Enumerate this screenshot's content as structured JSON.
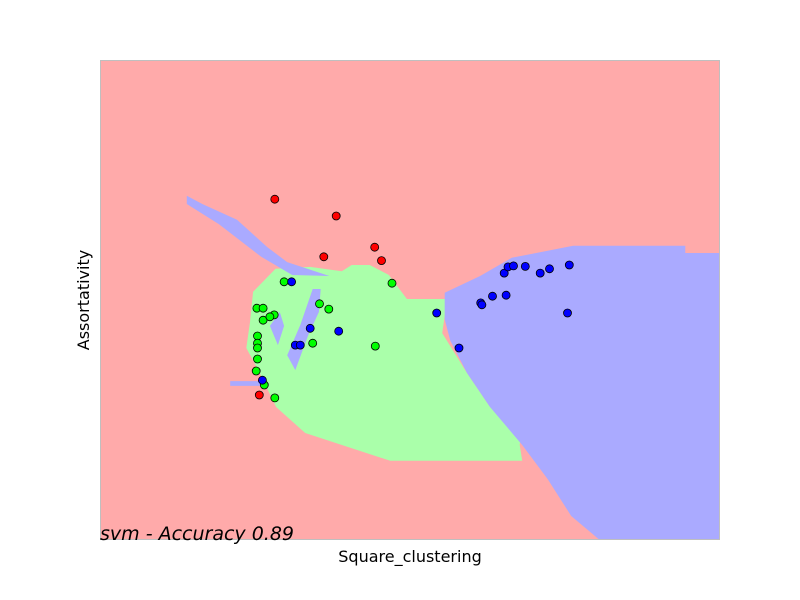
{
  "chart_data": {
    "type": "scatter",
    "title": "",
    "xlabel": "Square_clustering",
    "ylabel": "Assortativity",
    "annotation": "svm - Accuracy 0.89",
    "xlim": [
      0,
      1
    ],
    "ylim": [
      0,
      1
    ],
    "grid": false,
    "ticks": "hidden",
    "colors": {
      "background_region": "#ffaaaa",
      "blue_region": "#aaaaff",
      "green_region": "#aaffaa",
      "red_points": "#ff0000",
      "green_points": "#00ff00",
      "blue_points": "#0000ff",
      "point_edge": "#000000",
      "frame": "#bfbfbf"
    },
    "series": [
      {
        "class": "red",
        "x": [
          0.282,
          0.381,
          0.361,
          0.443,
          0.454,
          0.257
        ],
        "y": [
          0.71,
          0.675,
          0.59,
          0.61,
          0.582,
          0.302
        ]
      },
      {
        "class": "green",
        "x": [
          0.297,
          0.253,
          0.263,
          0.281,
          0.263,
          0.274,
          0.354,
          0.369,
          0.471,
          0.343,
          0.254,
          0.254,
          0.254,
          0.254,
          0.252,
          0.265,
          0.282,
          0.444
        ],
        "y": [
          0.538,
          0.483,
          0.483,
          0.469,
          0.458,
          0.465,
          0.492,
          0.481,
          0.535,
          0.41,
          0.425,
          0.41,
          0.4,
          0.377,
          0.352,
          0.323,
          0.296,
          0.404
        ]
      },
      {
        "class": "blue",
        "x": [
          0.309,
          0.339,
          0.385,
          0.315,
          0.323,
          0.262,
          0.543,
          0.579,
          0.614,
          0.616,
          0.633,
          0.655,
          0.652,
          0.658,
          0.667,
          0.686,
          0.71,
          0.725,
          0.757,
          0.754
        ],
        "y": [
          0.538,
          0.441,
          0.435,
          0.406,
          0.406,
          0.333,
          0.473,
          0.4,
          0.494,
          0.49,
          0.508,
          0.51,
          0.556,
          0.569,
          0.571,
          0.57,
          0.556,
          0.565,
          0.573,
          0.473
        ]
      }
    ],
    "decision_regions": {
      "background_class": "red",
      "green": [
        [
          0.242,
          0.454
        ],
        [
          0.236,
          0.4
        ],
        [
          0.256,
          0.352
        ],
        [
          0.284,
          0.277
        ],
        [
          0.331,
          0.223
        ],
        [
          0.468,
          0.165
        ],
        [
          0.681,
          0.165
        ],
        [
          0.677,
          0.198
        ],
        [
          0.681,
          0.244
        ],
        [
          0.629,
          0.277
        ],
        [
          0.592,
          0.348
        ],
        [
          0.552,
          0.431
        ],
        [
          0.56,
          0.502
        ],
        [
          0.495,
          0.502
        ],
        [
          0.466,
          0.552
        ],
        [
          0.435,
          0.573
        ],
        [
          0.406,
          0.573
        ],
        [
          0.39,
          0.56
        ],
        [
          0.339,
          0.569
        ],
        [
          0.283,
          0.565
        ],
        [
          0.247,
          0.517
        ]
      ],
      "blue": [
        [
          [
            0.14,
            0.717
          ],
          [
            0.165,
            0.7
          ],
          [
            0.221,
            0.667
          ],
          [
            0.27,
            0.61
          ],
          [
            0.302,
            0.579
          ],
          [
            0.37,
            0.55
          ],
          [
            0.31,
            0.552
          ],
          [
            0.26,
            0.59
          ],
          [
            0.192,
            0.658
          ],
          [
            0.14,
            0.7
          ]
        ],
        [
          [
            0.343,
            0.523
          ],
          [
            0.356,
            0.523
          ],
          [
            0.353,
            0.475
          ],
          [
            0.336,
            0.427
          ],
          [
            0.315,
            0.354
          ],
          [
            0.302,
            0.385
          ],
          [
            0.323,
            0.448
          ]
        ],
        [
          [
            0.29,
            0.475
          ],
          [
            0.274,
            0.446
          ],
          [
            0.287,
            0.406
          ],
          [
            0.297,
            0.446
          ]
        ],
        [
          [
            0.21,
            0.331
          ],
          [
            0.265,
            0.331
          ],
          [
            0.265,
            0.321
          ],
          [
            0.21,
            0.321
          ]
        ],
        [
          [
            0.556,
            0.46
          ],
          [
            0.556,
            0.515
          ],
          [
            0.613,
            0.55
          ],
          [
            0.664,
            0.588
          ],
          [
            0.763,
            0.613
          ],
          [
            0.944,
            0.613
          ],
          [
            0.944,
            0.598
          ],
          [
            1.0,
            0.598
          ],
          [
            1.0,
            0.0
          ],
          [
            0.806,
            0.0
          ],
          [
            0.76,
            0.05
          ],
          [
            0.722,
            0.127
          ],
          [
            0.681,
            0.198
          ],
          [
            0.629,
            0.277
          ],
          [
            0.592,
            0.348
          ],
          [
            0.565,
            0.415
          ]
        ]
      ]
    }
  }
}
